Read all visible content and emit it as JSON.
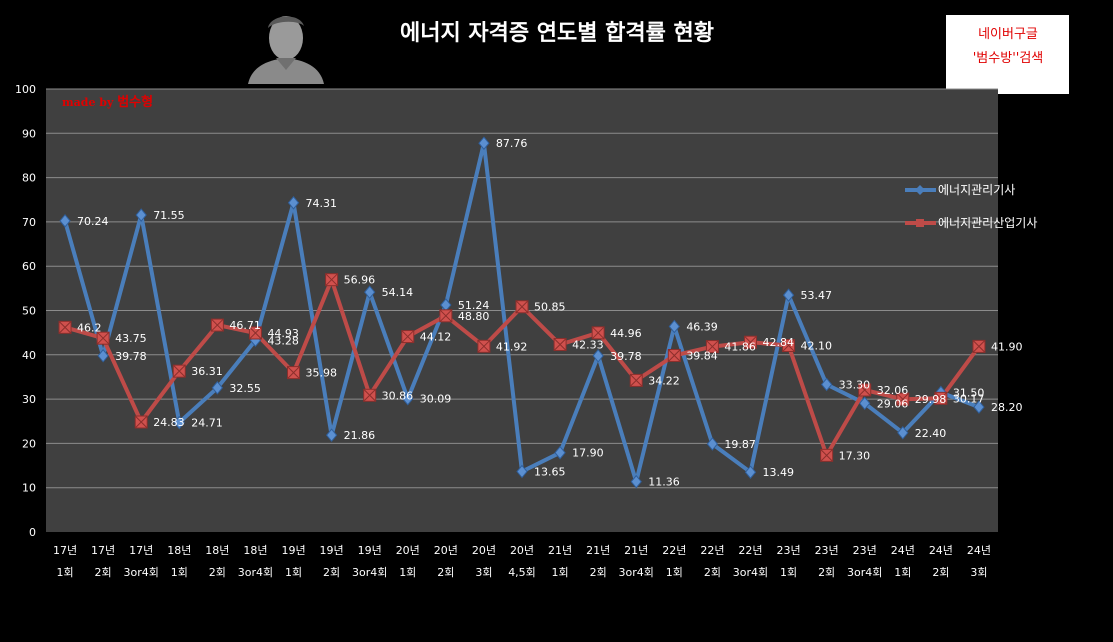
{
  "colors": {
    "background": "#000000",
    "plot_area": "#404040",
    "gridline": "#8c8c8c",
    "series1": "#4a7ebb",
    "series2": "#be4b48",
    "badge_text": "#e00000"
  },
  "badge": {
    "line1": "네이버구글",
    "line2": "'범수방''검색"
  },
  "madeby": {
    "prefix": "made by ",
    "name": "범수형"
  },
  "icons": {
    "avatar": "person-silhouette-icon"
  },
  "chart_data": {
    "type": "line",
    "title": "에너지 자격증 연도별 합격률 현황",
    "ylim": [
      0,
      100
    ],
    "yticks": [
      0,
      10,
      20,
      30,
      40,
      50,
      60,
      70,
      80,
      90,
      100
    ],
    "grid": true,
    "legend_position": "right",
    "categories": [
      [
        "17년",
        "1회"
      ],
      [
        "17년",
        "2회"
      ],
      [
        "17년",
        "3or4회"
      ],
      [
        "18년",
        "1회"
      ],
      [
        "18년",
        "2회"
      ],
      [
        "18년",
        "3or4회"
      ],
      [
        "19년",
        "1회"
      ],
      [
        "19년",
        "2회"
      ],
      [
        "19년",
        "3or4회"
      ],
      [
        "20년",
        "1회"
      ],
      [
        "20년",
        "2회"
      ],
      [
        "20년",
        "3회"
      ],
      [
        "20년",
        "4,5회"
      ],
      [
        "21년",
        "1회"
      ],
      [
        "21년",
        "2회"
      ],
      [
        "21년",
        "3or4회"
      ],
      [
        "22년",
        "1회"
      ],
      [
        "22년",
        "2회"
      ],
      [
        "22년",
        "3or4회"
      ],
      [
        "23년",
        "1회"
      ],
      [
        "23년",
        "2회"
      ],
      [
        "23년",
        "3or4회"
      ],
      [
        "24년",
        "1회"
      ],
      [
        "24년",
        "2회"
      ],
      [
        "24년",
        "3회"
      ]
    ],
    "series": [
      {
        "name": "에너지관리기사",
        "values": [
          70.24,
          39.78,
          71.55,
          24.71,
          32.55,
          43.28,
          74.31,
          21.86,
          54.14,
          30.09,
          51.24,
          87.76,
          13.65,
          17.9,
          39.78,
          11.36,
          46.39,
          19.87,
          13.49,
          53.47,
          33.3,
          29.06,
          22.4,
          31.5,
          28.2
        ],
        "labels": [
          "70.24",
          "39.78",
          "71.55",
          "24.71",
          "32.55",
          "43.28",
          "74.31",
          "21.86",
          "54.14",
          "30.09",
          "51.24",
          "87.76",
          "13.65",
          "17.90",
          "39.78",
          "11.36",
          "46.39",
          "19.87",
          "13.49",
          "53.47",
          "33.30",
          "29.06",
          "22.40",
          "31.50",
          "28.20"
        ]
      },
      {
        "name": "에너지관리산업기사",
        "values": [
          46.2,
          43.75,
          24.83,
          36.31,
          46.71,
          44.93,
          35.98,
          56.96,
          30.86,
          44.12,
          48.8,
          41.92,
          50.85,
          42.33,
          44.96,
          34.22,
          39.84,
          41.86,
          42.84,
          42.1,
          17.3,
          32.06,
          29.98,
          30.17,
          41.9
        ],
        "labels": [
          "46.2",
          "43.75",
          "24.83",
          "36.31",
          "46.71",
          "44.93",
          "35.98",
          "56.96",
          "30.86",
          "44.12",
          "48.80",
          "41.92",
          "50.85",
          "42.33",
          "44.96",
          "34.22",
          "39.84",
          "41.86",
          "42.84",
          "42.10",
          "17.30",
          "32.06",
          "29.98",
          "30.17",
          "41.90"
        ]
      }
    ]
  }
}
